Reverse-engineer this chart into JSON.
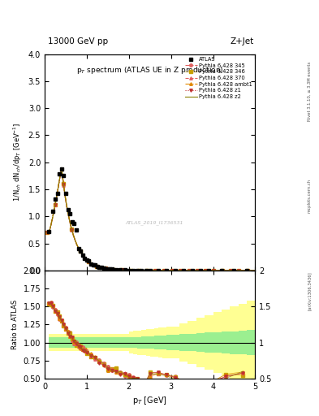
{
  "title_top": "13000 GeV pp",
  "title_right": "Z+Jet",
  "plot_title": "p$_T$ spectrum (ATLAS UE in Z production)",
  "xlabel": "p$_T$ [GeV]",
  "ylabel_main": "1/N$_{ch}$ dN$_{ch}$/dp$_T$ [GeV$^{-1}$]",
  "ylabel_ratio": "Ratio to ATLAS",
  "watermark": "ATLAS_2019_I1736531",
  "right_label_top": "Rivet 3.1.10, ≥ 3.3M events",
  "right_label_bot": "[arXiv:1306.3436]",
  "right_label_site": "mcplots.cern.ch",
  "xlim": [
    0,
    5
  ],
  "ylim_main": [
    0,
    4
  ],
  "ylim_ratio": [
    0.5,
    2
  ],
  "band_green": "#90ee90",
  "band_yellow": "#ffff80",
  "series": [
    {
      "label": "Pythia 6.428 345",
      "color": "#e06060",
      "marker": "o",
      "ls": "-."
    },
    {
      "label": "Pythia 6.428 346",
      "color": "#c8a000",
      "marker": "s",
      "ls": ":"
    },
    {
      "label": "Pythia 6.428 370",
      "color": "#e06060",
      "marker": "^",
      "ls": "--"
    },
    {
      "label": "Pythia 6.428 ambt1",
      "color": "#e08800",
      "marker": "^",
      "ls": "-."
    },
    {
      "label": "Pythia 6.428 z1",
      "color": "#c03030",
      "marker": "v",
      "ls": ":"
    },
    {
      "label": "Pythia 6.428 z2",
      "color": "#8B8000",
      "marker": "none",
      "ls": "-"
    }
  ]
}
